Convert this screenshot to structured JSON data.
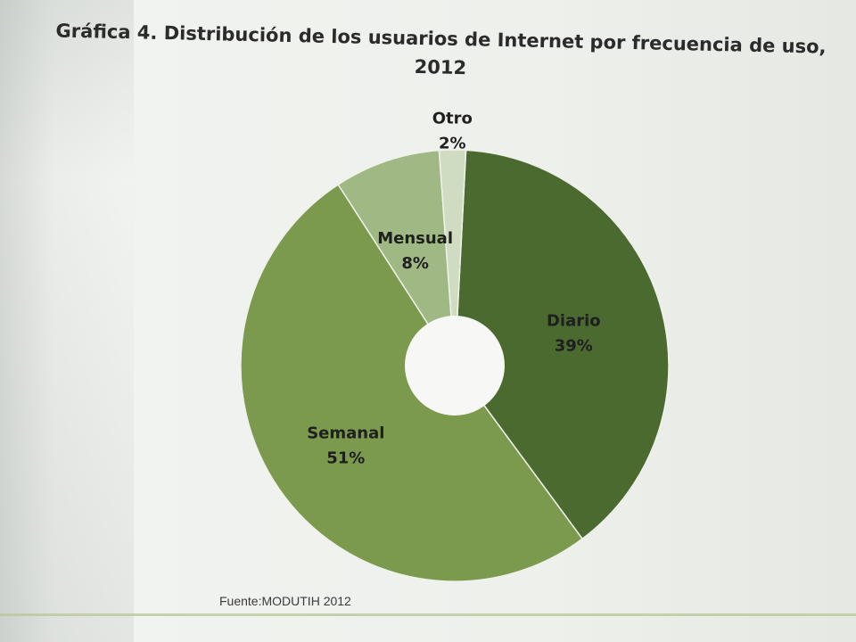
{
  "chart_data": {
    "type": "pie",
    "variant": "donut",
    "title_line1": "Gráfica 4. Distribución de los usuarios de Internet por frecuencia de uso,",
    "title_line2": "2012",
    "slices": [
      {
        "label": "Diario",
        "value": 39,
        "value_label": "39%",
        "color": "#4b6a30"
      },
      {
        "label": "Semanal",
        "value": 51,
        "value_label": "51%",
        "color": "#7c9a4e"
      },
      {
        "label": "Mensual",
        "value": 8,
        "value_label": "8%",
        "color": "#9fb884"
      },
      {
        "label": "Otro",
        "value": 2,
        "value_label": "2%",
        "color": "#cfdcc2"
      }
    ],
    "source": "Fuente:MODUTIH 2012"
  }
}
